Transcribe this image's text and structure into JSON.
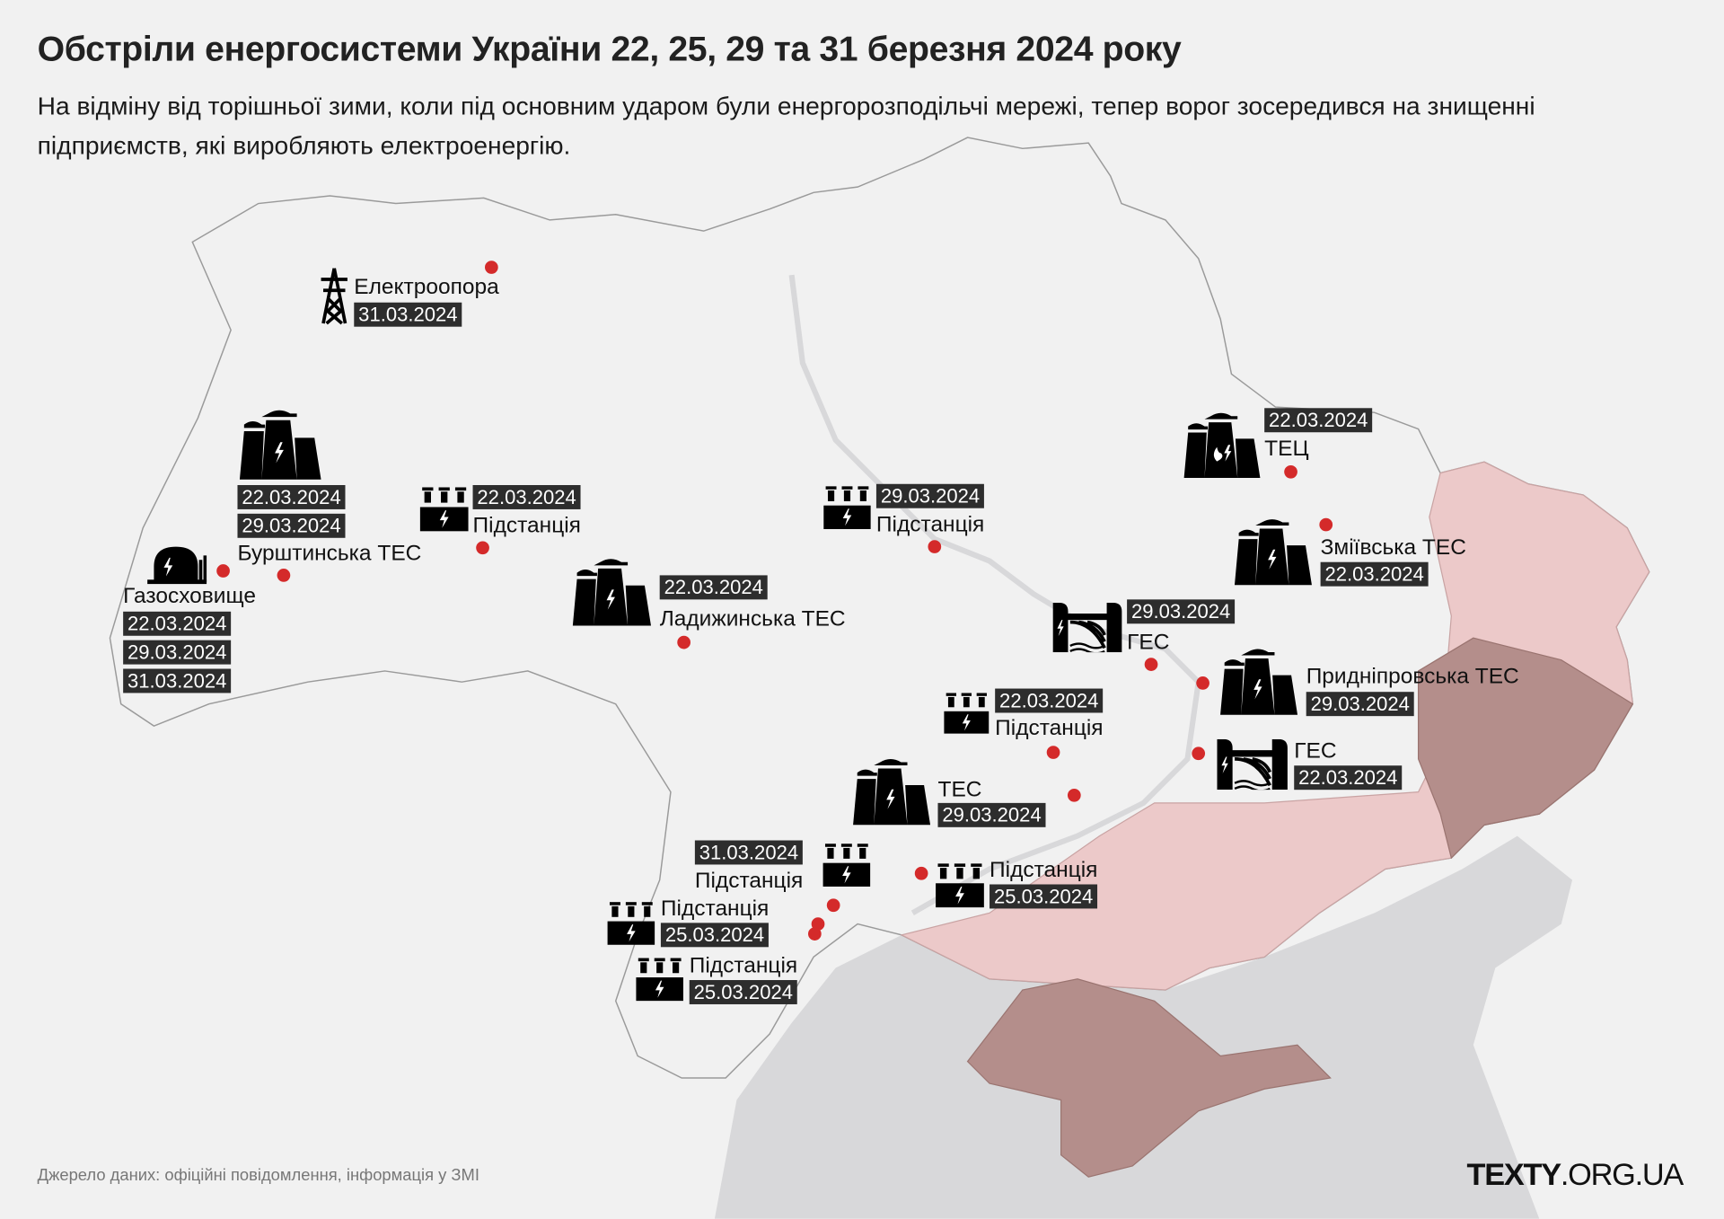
{
  "title": "Обстріли енергосистеми України 22, 25, 29 та 31 березня 2024 року",
  "subtitle": "На відміну від торішньої зими, коли під основним ударом були енергорозподільчі мережі, тепер ворог зосередився на знищенні підприємств, які виробляють електроенергію.",
  "source": "Джерело даних: офіційні повідомлення, інформація у ЗМІ",
  "logo": {
    "bold": "TEXTY",
    "rest": ".ORG.UA"
  },
  "colors": {
    "attack_dot": "#d42a2a",
    "occupied": "#ecc9c9",
    "occupied_dark": "#b48e8b",
    "sea": "#d8d8da",
    "land": "#f1f1f1",
    "date_box": "#2d2d2d"
  },
  "markers": [
    {
      "icon": "pylon-icon",
      "name": "Електроопора",
      "dates": [
        "31.03.2024"
      ]
    },
    {
      "icon": "power-plant-icon",
      "name": "Бурштинська ТЕС",
      "dates": [
        "22.03.2024",
        "29.03.2024"
      ]
    },
    {
      "icon": "gas-storage-icon",
      "name": "Газосховище",
      "dates": [
        "22.03.2024",
        "29.03.2024",
        "31.03.2024"
      ]
    },
    {
      "icon": "substation-icon",
      "name": "Підстанція",
      "dates": [
        "22.03.2024"
      ]
    },
    {
      "icon": "power-plant-icon",
      "name": "Ладижинська ТЕС",
      "dates": [
        "22.03.2024"
      ]
    },
    {
      "icon": "substation-icon",
      "name": "Підстанція",
      "dates": [
        "29.03.2024"
      ]
    },
    {
      "icon": "chp-plant-icon",
      "name": "ТЕЦ",
      "dates": [
        "22.03.2024"
      ]
    },
    {
      "icon": "power-plant-icon",
      "name": "Зміївська ТЕС",
      "dates": [
        "22.03.2024"
      ]
    },
    {
      "icon": "hydro-plant-icon",
      "name": "ГЕС",
      "dates": [
        "29.03.2024"
      ]
    },
    {
      "icon": "power-plant-icon",
      "name": "Придніпровська ТЕС",
      "dates": [
        "29.03.2024"
      ]
    },
    {
      "icon": "substation-icon",
      "name": "Підстанція",
      "dates": [
        "22.03.2024"
      ]
    },
    {
      "icon": "hydro-plant-icon",
      "name": "ГЕС",
      "dates": [
        "22.03.2024"
      ]
    },
    {
      "icon": "power-plant-icon",
      "name": "ТЕС",
      "dates": [
        "29.03.2024"
      ]
    },
    {
      "icon": "substation-icon",
      "name": "Підстанція",
      "dates": [
        "31.03.2024"
      ]
    },
    {
      "icon": "substation-icon",
      "name": "Підстанція",
      "dates": [
        "25.03.2024"
      ]
    },
    {
      "icon": "substation-icon",
      "name": "Підстанція",
      "dates": [
        "25.03.2024"
      ]
    },
    {
      "icon": "substation-icon",
      "name": "Підстанція",
      "dates": [
        "25.03.2024"
      ]
    }
  ]
}
